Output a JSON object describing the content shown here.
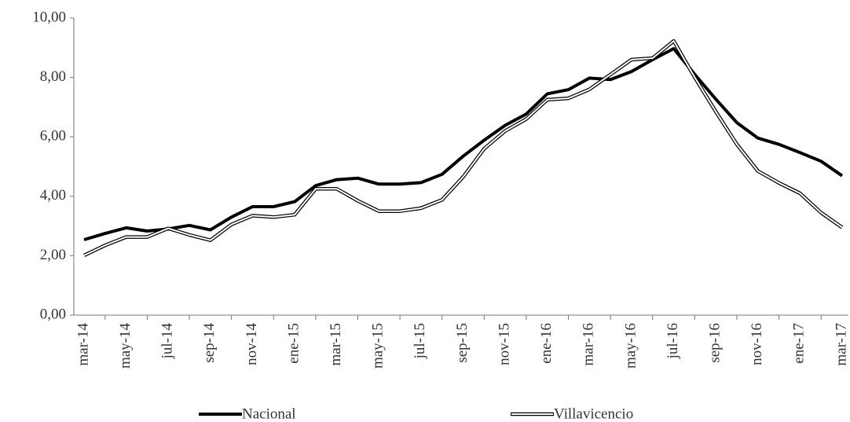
{
  "chart_data": {
    "type": "line",
    "categories": [
      "mar-14",
      null,
      "may-14",
      null,
      "jul-14",
      null,
      "sep-14",
      null,
      "nov-14",
      null,
      "ene-15",
      null,
      "mar-15",
      null,
      "may-15",
      null,
      "jul-15",
      null,
      "sep-15",
      null,
      "nov-15",
      null,
      "ene-16",
      null,
      "mar-16",
      null,
      "may-16",
      null,
      "jul-16",
      null,
      "sep-16",
      null,
      "nov-16",
      null,
      "ene-17",
      null,
      "mar-17"
    ],
    "series": [
      {
        "name": "Nacional",
        "color": "#000000",
        "style": "solid",
        "values": [
          2.54,
          2.75,
          2.94,
          2.83,
          2.9,
          3.02,
          2.87,
          3.3,
          3.65,
          3.65,
          3.82,
          4.36,
          4.56,
          4.61,
          4.41,
          4.41,
          4.46,
          4.74,
          5.35,
          5.89,
          6.39,
          6.77,
          7.45,
          7.59,
          7.98,
          7.93,
          8.2,
          8.6,
          8.97,
          8.1,
          7.27,
          6.48,
          5.96,
          5.75,
          5.47,
          5.18,
          4.69
        ]
      },
      {
        "name": "Villavicencio",
        "color": "#000000",
        "style": "double",
        "values": [
          2.01,
          2.35,
          2.63,
          2.63,
          2.92,
          2.7,
          2.52,
          3.05,
          3.35,
          3.3,
          3.38,
          4.25,
          4.25,
          3.85,
          3.5,
          3.5,
          3.6,
          3.88,
          4.65,
          5.6,
          6.2,
          6.6,
          7.25,
          7.3,
          7.6,
          8.1,
          8.6,
          8.65,
          9.23,
          8.0,
          6.85,
          5.75,
          4.85,
          4.45,
          4.1,
          3.45,
          2.95
        ]
      }
    ],
    "ylim": [
      0,
      10
    ],
    "yticks": [
      {
        "value": 0,
        "label": "0,00"
      },
      {
        "value": 2,
        "label": "2,00"
      },
      {
        "value": 4,
        "label": "4,00"
      },
      {
        "value": 6,
        "label": "6,00"
      },
      {
        "value": 8,
        "label": "8,00"
      },
      {
        "value": 10,
        "label": "10,00"
      }
    ],
    "legend": "bottom",
    "grid": false
  }
}
